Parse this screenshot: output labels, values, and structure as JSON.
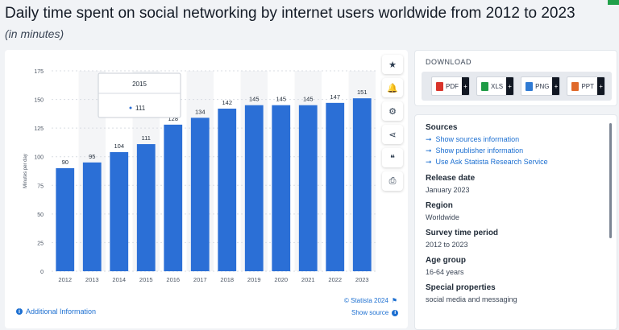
{
  "page": {
    "title": "Daily time spent on social networking by internet users worldwide from 2012 to 2023",
    "subtitle": "(in minutes)"
  },
  "chart_data": {
    "type": "bar",
    "title": "",
    "xlabel": "",
    "ylabel": "Minutes per day",
    "ylim": [
      0,
      175
    ],
    "yticks": [
      0,
      25,
      50,
      75,
      100,
      125,
      150,
      175
    ],
    "categories": [
      "2012",
      "2013",
      "2014",
      "2015",
      "2016",
      "2017",
      "2018",
      "2019",
      "2020",
      "2021",
      "2022",
      "2023"
    ],
    "values": [
      90,
      95,
      104,
      111,
      128,
      134,
      142,
      145,
      145,
      145,
      147,
      151
    ],
    "bar_color": "#2b6fd6",
    "grid": true,
    "tooltip": {
      "title": "2015",
      "value": "111"
    }
  },
  "toolbar": {
    "items": [
      {
        "name": "favorite-star-icon",
        "glyph": "★"
      },
      {
        "name": "notification-bell-icon",
        "glyph": "🔔"
      },
      {
        "name": "settings-gear-icon",
        "glyph": "⚙"
      },
      {
        "name": "share-icon",
        "glyph": "⋖"
      },
      {
        "name": "citation-quote-icon",
        "glyph": "❝"
      },
      {
        "name": "print-icon",
        "glyph": "⎙"
      }
    ]
  },
  "footer": {
    "additional_info": "Additional Information",
    "copyright": "© Statista 2024",
    "show_source": "Show source"
  },
  "download": {
    "label": "DOWNLOAD",
    "buttons": [
      {
        "label": "PDF",
        "color": "#d9342b"
      },
      {
        "label": "XLS",
        "color": "#1e9b45"
      },
      {
        "label": "PNG",
        "color": "#2f7ad3"
      },
      {
        "label": "PPT",
        "color": "#e0692a"
      }
    ]
  },
  "info": {
    "sources_heading": "Sources",
    "links": [
      "Show sources information",
      "Show publisher information",
      "Use Ask Statista Research Service"
    ],
    "meta": [
      {
        "heading": "Release date",
        "value": "January 2023"
      },
      {
        "heading": "Region",
        "value": "Worldwide"
      },
      {
        "heading": "Survey time period",
        "value": "2012 to 2023"
      },
      {
        "heading": "Age group",
        "value": "16-64 years"
      },
      {
        "heading": "Special properties",
        "value": "social media and messaging"
      }
    ]
  }
}
